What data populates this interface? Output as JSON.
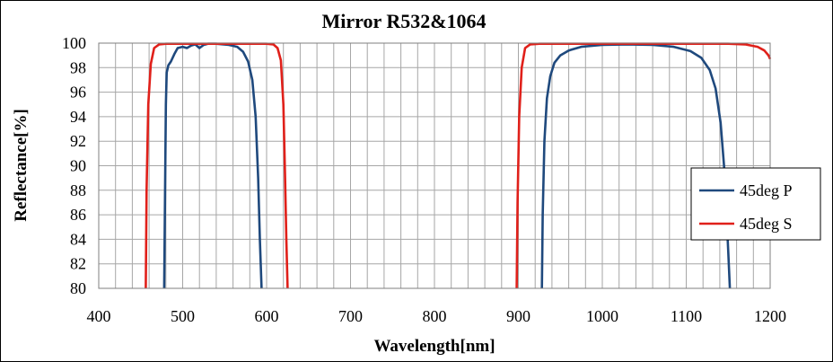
{
  "chart_data": {
    "type": "line",
    "title": "Mirror  R532&1064",
    "xlabel": "Wavelength[nm]",
    "ylabel": "Reflectance[%]",
    "xlim": [
      400,
      1200
    ],
    "ylim": [
      80,
      100
    ],
    "x_ticks": [
      400,
      500,
      600,
      700,
      800,
      900,
      1000,
      1100,
      1200
    ],
    "y_ticks": [
      80,
      82,
      84,
      86,
      88,
      90,
      92,
      94,
      96,
      98,
      100
    ],
    "x_minor_step": 20,
    "grid": true,
    "legend_position": "right",
    "series": [
      {
        "name": "45deg P",
        "color": "#1f497d",
        "segments": [
          [
            [
              478,
              80
            ],
            [
              479,
              88
            ],
            [
              480,
              95
            ],
            [
              481,
              97.6
            ],
            [
              483,
              98.2
            ],
            [
              486,
              98.5
            ],
            [
              490,
              99.1
            ],
            [
              494,
              99.6
            ],
            [
              500,
              99.7
            ],
            [
              505,
              99.6
            ],
            [
              510,
              99.8
            ],
            [
              515,
              99.9
            ],
            [
              520,
              99.6
            ],
            [
              525,
              99.85
            ],
            [
              530,
              99.95
            ],
            [
              540,
              99.95
            ],
            [
              555,
              99.85
            ],
            [
              565,
              99.7
            ],
            [
              572,
              99.3
            ],
            [
              578,
              98.5
            ],
            [
              583,
              97
            ],
            [
              587,
              94
            ],
            [
              590,
              89
            ],
            [
              592,
              84
            ],
            [
              594,
              80
            ]
          ],
          [
            [
              928,
              80
            ],
            [
              929,
              86
            ],
            [
              931,
              92
            ],
            [
              934,
              95.5
            ],
            [
              938,
              97.3
            ],
            [
              943,
              98.4
            ],
            [
              950,
              99
            ],
            [
              960,
              99.4
            ],
            [
              975,
              99.7
            ],
            [
              1000,
              99.85
            ],
            [
              1030,
              99.9
            ],
            [
              1060,
              99.85
            ],
            [
              1085,
              99.7
            ],
            [
              1105,
              99.35
            ],
            [
              1118,
              98.8
            ],
            [
              1128,
              97.8
            ],
            [
              1135,
              96.3
            ],
            [
              1141,
              93.5
            ],
            [
              1145,
              90
            ],
            [
              1148,
              86
            ],
            [
              1150,
              83
            ],
            [
              1152,
              80
            ]
          ]
        ]
      },
      {
        "name": "45deg S",
        "color": "#e0201a",
        "segments": [
          [
            [
              456,
              80
            ],
            [
              457,
              88
            ],
            [
              459,
              95
            ],
            [
              462,
              98.3
            ],
            [
              466,
              99.6
            ],
            [
              472,
              99.9
            ],
            [
              480,
              99.95
            ],
            [
              600,
              99.95
            ],
            [
              608,
              99.9
            ],
            [
              613,
              99.6
            ],
            [
              617,
              98.6
            ],
            [
              620,
              95
            ],
            [
              622,
              89
            ],
            [
              623.5,
              84
            ],
            [
              625,
              80
            ]
          ],
          [
            [
              898,
              80
            ],
            [
              899,
              87
            ],
            [
              901,
              94
            ],
            [
              904,
              98
            ],
            [
              908,
              99.6
            ],
            [
              914,
              99.9
            ],
            [
              925,
              99.95
            ],
            [
              1150,
              99.95
            ],
            [
              1170,
              99.9
            ],
            [
              1185,
              99.7
            ],
            [
              1193,
              99.4
            ],
            [
              1198,
              99
            ],
            [
              1200,
              98.7
            ]
          ]
        ]
      }
    ]
  }
}
